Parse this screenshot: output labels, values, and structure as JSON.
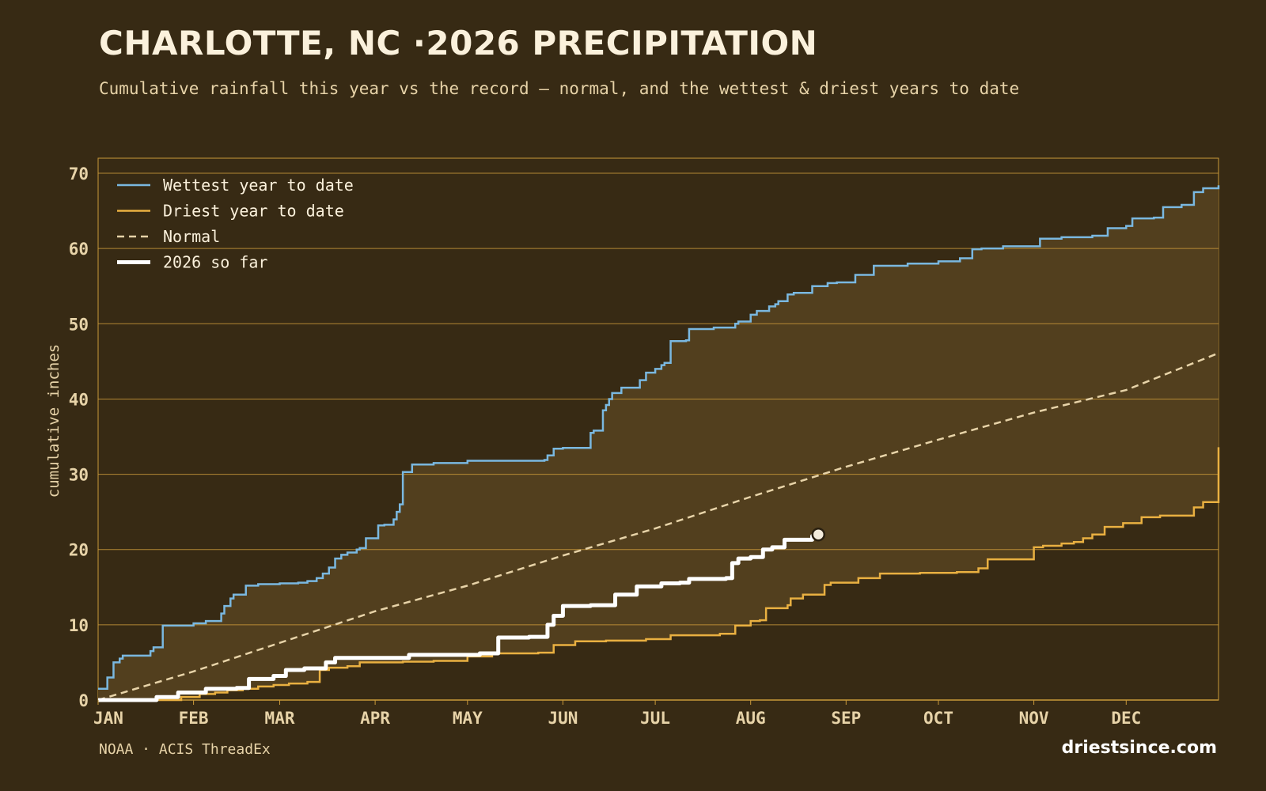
{
  "header": {
    "title": "CHARLOTTE, NC ·2026 PRECIPITATION",
    "subtitle": "Cumulative rainfall this year vs the record — normal, and the wettest & driest years to date"
  },
  "footer": {
    "source": "NOAA · ACIS ThreadEx",
    "brand": "driestsince.com"
  },
  "colors": {
    "background": "#372a14",
    "band_fill": "#523f1e",
    "grid": "#c9993a",
    "wettest": "#7ab8e0",
    "driest": "#e9b041",
    "normal": "#e7d3a8",
    "current": "#ffffff",
    "tick_text": "#e7d3a8"
  },
  "chart_data": {
    "type": "line",
    "ylabel": "cumulative inches",
    "xlabel": "",
    "ylim": [
      0,
      72
    ],
    "yticks": [
      0,
      10,
      20,
      30,
      40,
      50,
      60,
      70
    ],
    "xlim": [
      "Jan 1",
      "Dec 31"
    ],
    "xticks": [
      "JAN",
      "FEB",
      "MAR",
      "APR",
      "MAY",
      "JUN",
      "JUL",
      "AUG",
      "SEP",
      "OCT",
      "NOV",
      "DEC"
    ],
    "grid": "horizontal",
    "legend_position": "top-left",
    "series": [
      {
        "name": "Wettest year to date",
        "color_key": "wettest",
        "style": "step",
        "x": [
          "Jan 1",
          "Jan 4",
          "Jan 6",
          "Jan 8",
          "Jan 9",
          "Jan 10",
          "Jan 12",
          "Jan 18",
          "Jan 19",
          "Jan 22",
          "Feb 1",
          "Feb 5",
          "Feb 10",
          "Feb 11",
          "Feb 13",
          "Feb 14",
          "Feb 18",
          "Feb 22",
          "Mar 1",
          "Mar 7",
          "Mar 10",
          "Mar 13",
          "Mar 15",
          "Mar 17",
          "Mar 19",
          "Mar 21",
          "Mar 23",
          "Mar 26",
          "Mar 27",
          "Mar 29",
          "Apr 2",
          "Apr 4",
          "Apr 7",
          "Apr 8",
          "Apr 9",
          "Apr 10",
          "Apr 13",
          "Apr 20",
          "May 1",
          "May 26",
          "May 27",
          "May 29",
          "Jun 1",
          "Jun 10",
          "Jun 11",
          "Jun 14",
          "Jun 15",
          "Jun 16",
          "Jun 17",
          "Jun 20",
          "Jun 26",
          "Jun 28",
          "Jul 1",
          "Jul 3",
          "Jul 4",
          "Jul 6",
          "Jul 11",
          "Jul 12",
          "Jul 20",
          "Jul 27",
          "Jul 28",
          "Aug 1",
          "Aug 3",
          "Aug 7",
          "Aug 9",
          "Aug 10",
          "Aug 13",
          "Aug 15",
          "Aug 21",
          "Aug 26",
          "Aug 29",
          "Sep 4",
          "Sep 10",
          "Sep 21",
          "Oct 1",
          "Oct 8",
          "Oct 12",
          "Oct 15",
          "Oct 22",
          "Nov 3",
          "Nov 10",
          "Nov 20",
          "Nov 25",
          "Dec 1",
          "Dec 3",
          "Dec 10",
          "Dec 13",
          "Dec 19",
          "Dec 23",
          "Dec 26",
          "Dec 31"
        ],
        "values": [
          1.5,
          3.0,
          5.0,
          5.5,
          5.9,
          5.9,
          5.9,
          6.5,
          7.0,
          9.9,
          10.2,
          10.5,
          11.5,
          12.5,
          13.5,
          14.0,
          15.2,
          15.4,
          15.5,
          15.6,
          15.8,
          16.2,
          16.8,
          17.6,
          18.8,
          19.3,
          19.6,
          20.0,
          20.2,
          21.5,
          23.2,
          23.3,
          24.0,
          25.0,
          26.0,
          30.3,
          31.3,
          31.5,
          31.8,
          31.9,
          32.5,
          33.4,
          33.5,
          35.5,
          35.8,
          38.5,
          39.2,
          40.0,
          40.8,
          41.5,
          42.5,
          43.5,
          44.0,
          44.5,
          44.8,
          47.7,
          47.8,
          49.3,
          49.5,
          50.0,
          50.3,
          51.2,
          51.7,
          52.3,
          52.6,
          53.0,
          53.9,
          54.1,
          55.0,
          55.4,
          55.5,
          56.5,
          57.7,
          58.0,
          58.3,
          58.7,
          59.9,
          60.0,
          60.3,
          61.3,
          61.5,
          61.7,
          62.7,
          63.0,
          64.0,
          64.1,
          65.5,
          65.8,
          67.5,
          68.0,
          68.4
        ]
      },
      {
        "name": "Driest year to date",
        "color_key": "driest",
        "style": "step",
        "x": [
          "Jan 1",
          "Jan 28",
          "Feb 3",
          "Feb 8",
          "Feb 12",
          "Feb 17",
          "Feb 22",
          "Feb 27",
          "Mar 4",
          "Mar 10",
          "Mar 14",
          "Mar 17",
          "Mar 23",
          "Mar 27",
          "Apr 10",
          "Apr 20",
          "May 1",
          "May 9",
          "May 24",
          "May 29",
          "Jun 5",
          "Jun 15",
          "Jun 28",
          "Jul 6",
          "Jul 22",
          "Jul 27",
          "Aug 1",
          "Aug 4",
          "Aug 6",
          "Aug 13",
          "Aug 14",
          "Aug 18",
          "Aug 25",
          "Aug 27",
          "Sep 5",
          "Sep 12",
          "Sep 25",
          "Oct 7",
          "Oct 14",
          "Oct 17",
          "Nov 1",
          "Nov 4",
          "Nov 10",
          "Nov 14",
          "Nov 17",
          "Nov 20",
          "Nov 24",
          "Nov 30",
          "Dec 6",
          "Dec 12",
          "Dec 23",
          "Dec 26",
          "Dec 31"
        ],
        "values": [
          0,
          0.4,
          0.8,
          1.0,
          1.3,
          1.5,
          1.8,
          2.0,
          2.2,
          2.4,
          4.0,
          4.3,
          4.5,
          5.0,
          5.1,
          5.2,
          5.8,
          6.2,
          6.3,
          7.3,
          7.8,
          7.9,
          8.1,
          8.6,
          8.8,
          9.9,
          10.5,
          10.6,
          12.2,
          12.6,
          13.5,
          14.0,
          15.3,
          15.6,
          16.2,
          16.8,
          16.9,
          17.0,
          17.5,
          18.7,
          20.3,
          20.5,
          20.8,
          21.0,
          21.5,
          22.0,
          23.0,
          23.5,
          24.3,
          24.5,
          25.6,
          26.3,
          33.6
        ]
      },
      {
        "name": "Normal",
        "color_key": "normal",
        "style": "dashed",
        "x": [
          "Jan 1",
          "Feb 1",
          "Mar 1",
          "Apr 1",
          "May 1",
          "Jun 1",
          "Jul 1",
          "Aug 1",
          "Sep 1",
          "Oct 1",
          "Nov 1",
          "Dec 1",
          "Dec 31"
        ],
        "values": [
          0,
          3.8,
          7.6,
          11.8,
          15.2,
          19.2,
          22.8,
          27.0,
          31.0,
          34.6,
          38.2,
          41.2,
          46.1
        ]
      },
      {
        "name": "2026 so far",
        "color_key": "current",
        "style": "step-bold",
        "x": [
          "Jan 1",
          "Jan 20",
          "Jan 27",
          "Feb 3",
          "Feb 5",
          "Feb 10",
          "Feb 15",
          "Feb 19",
          "Feb 27",
          "Mar 3",
          "Mar 5",
          "Mar 9",
          "Mar 16",
          "Mar 19",
          "Mar 22",
          "Mar 30",
          "Apr 12",
          "Apr 25",
          "May 5",
          "May 11",
          "May 21",
          "May 27",
          "May 29",
          "Jun 1",
          "Jun 10",
          "Jun 18",
          "Jun 25",
          "Jul 3",
          "Jul 9",
          "Jul 12",
          "Jul 24",
          "Jul 26",
          "Jul 28",
          "Aug 1",
          "Aug 5",
          "Aug 8",
          "Aug 12",
          "Aug 17",
          "Aug 21",
          "Aug 23"
        ],
        "values": [
          0,
          0.4,
          1.0,
          1.0,
          1.5,
          1.5,
          1.6,
          2.8,
          3.2,
          4.0,
          4.0,
          4.2,
          5.0,
          5.6,
          5.6,
          5.6,
          6.0,
          6.0,
          6.2,
          8.3,
          8.4,
          10.0,
          11.2,
          12.5,
          12.6,
          14.0,
          15.1,
          15.5,
          15.6,
          16.1,
          16.2,
          18.2,
          18.8,
          19.0,
          20.0,
          20.3,
          21.3,
          21.3,
          21.8,
          22.0
        ]
      }
    ],
    "end_marker": {
      "series": "2026 so far",
      "x": "Aug 23",
      "value": 22.0
    }
  }
}
